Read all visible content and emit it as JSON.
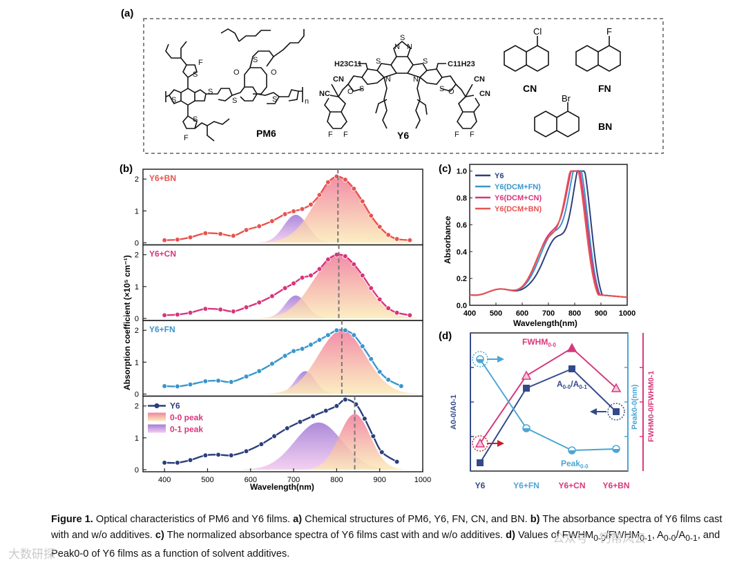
{
  "panel_labels": {
    "a": "(a)",
    "b": "(b)",
    "c": "(c)",
    "d": "(d)"
  },
  "panel_a": {
    "molecules": [
      {
        "name": "PM6",
        "atoms": [
          "F",
          "F",
          "S",
          "S",
          "S",
          "S",
          "S",
          "S",
          "S",
          "O",
          "O"
        ],
        "subscript": "n"
      },
      {
        "name": "Y6",
        "atoms": [
          "N",
          "N",
          "S",
          "S",
          "S",
          "S",
          "S",
          "N",
          "N",
          "O",
          "O",
          "F",
          "F",
          "F",
          "F",
          "CN",
          "CN",
          "CN",
          "NC"
        ],
        "side_chains": [
          "H23C11",
          "C11H23"
        ]
      },
      {
        "name": "CN",
        "halogen": "Cl"
      },
      {
        "name": "FN",
        "halogen": "F"
      },
      {
        "name": "BN",
        "halogen": "Br"
      }
    ]
  },
  "colors": {
    "bn": "#e8534f",
    "cn": "#d9347c",
    "fn": "#3a95cc",
    "y6": "#2c3f7c",
    "peak00": "#f08aa6",
    "peak01": "#b48ad8",
    "fwhm": "#d8387c",
    "a_ratio": "#334a8a",
    "peak_pos": "#4aa6d6"
  },
  "chart_data": [
    {
      "type": "line",
      "panel": "b",
      "title": "",
      "xlabel": "Wavelength(nm)",
      "ylabel": "Absorption coefficient (×10⁵ cm⁻¹)",
      "xlim": [
        350,
        1000
      ],
      "ylim": [
        0,
        2.2
      ],
      "xticks": [
        400,
        500,
        600,
        700,
        800,
        900,
        1000
      ],
      "yticks": [
        0,
        1,
        2
      ],
      "series": [
        {
          "name": "Y6+BN",
          "peak_line": 803,
          "x": [
            400,
            430,
            460,
            495,
            530,
            560,
            590,
            620,
            650,
            680,
            700,
            720,
            740,
            760,
            780,
            800,
            820,
            840,
            860,
            880,
            900,
            920,
            940,
            970
          ],
          "y": [
            0.08,
            0.1,
            0.17,
            0.3,
            0.28,
            0.22,
            0.4,
            0.52,
            0.68,
            0.9,
            0.99,
            1.06,
            1.2,
            1.5,
            1.9,
            2.08,
            1.98,
            1.7,
            1.3,
            0.85,
            0.5,
            0.25,
            0.12,
            0.08
          ],
          "peak00": {
            "center": 805,
            "height": 2.08,
            "width": 55
          },
          "peak01": {
            "center": 705,
            "height": 0.88,
            "width": 28
          }
        },
        {
          "name": "Y6+CN",
          "peak_line": 805,
          "x": [
            400,
            430,
            460,
            495,
            530,
            560,
            590,
            620,
            650,
            680,
            700,
            720,
            740,
            760,
            780,
            800,
            820,
            840,
            860,
            880,
            900,
            920,
            940,
            970
          ],
          "y": [
            0.1,
            0.12,
            0.18,
            0.3,
            0.28,
            0.22,
            0.35,
            0.5,
            0.7,
            0.95,
            1.1,
            1.28,
            1.35,
            1.55,
            1.85,
            2.0,
            1.95,
            1.7,
            1.35,
            0.95,
            0.6,
            0.32,
            0.18,
            0.1
          ],
          "peak00": {
            "center": 805,
            "height": 2.0,
            "width": 58
          },
          "peak01": {
            "center": 705,
            "height": 0.72,
            "width": 25
          }
        },
        {
          "name": "Y6+FN",
          "peak_line": 812,
          "x": [
            400,
            430,
            460,
            495,
            525,
            555,
            590,
            620,
            650,
            680,
            700,
            720,
            740,
            760,
            780,
            800,
            820,
            840,
            860,
            880,
            900,
            920,
            950
          ],
          "y": [
            0.25,
            0.24,
            0.3,
            0.4,
            0.42,
            0.38,
            0.55,
            0.72,
            0.95,
            1.2,
            1.35,
            1.42,
            1.55,
            1.7,
            1.85,
            2.0,
            2.0,
            1.85,
            1.5,
            1.1,
            0.7,
            0.45,
            0.25
          ],
          "peak00": {
            "center": 812,
            "height": 2.0,
            "width": 55
          },
          "peak01": {
            "center": 727,
            "height": 0.72,
            "width": 23
          }
        },
        {
          "name": "Y6",
          "peak_line": 842,
          "x": [
            400,
            430,
            460,
            495,
            525,
            555,
            590,
            625,
            655,
            685,
            715,
            745,
            775,
            800,
            820,
            845,
            865,
            885,
            905,
            940
          ],
          "y": [
            0.22,
            0.22,
            0.3,
            0.45,
            0.47,
            0.45,
            0.58,
            0.8,
            1.05,
            1.3,
            1.5,
            1.68,
            1.85,
            2.0,
            2.2,
            2.05,
            1.6,
            1.05,
            0.55,
            0.25
          ],
          "peak00": {
            "center": 842,
            "height": 1.75,
            "width": 36
          },
          "peak01": {
            "center": 758,
            "height": 1.48,
            "width": 55
          }
        }
      ],
      "legend": [
        "Y6",
        "0-0 peak",
        "0-1 peak"
      ]
    },
    {
      "type": "line",
      "panel": "c",
      "xlabel": "Wavelength(nm)",
      "ylabel": "Absorbance",
      "xlim": [
        400,
        1000
      ],
      "ylim": [
        0,
        1.05
      ],
      "xticks": [
        400,
        500,
        600,
        700,
        800,
        900,
        1000
      ],
      "yticks": [
        "0.0",
        "0.2",
        "0.4",
        "0.6",
        "0.8",
        "1.0"
      ],
      "legend_position": "top-left",
      "series": [
        {
          "name": "Y6",
          "peak": 828,
          "width": 34,
          "shoulder": 1.0
        },
        {
          "name": "Y6(DCM+FN)",
          "peak": 815,
          "width": 36,
          "shoulder": 1.03
        },
        {
          "name": "Y6(DCM+CN)",
          "peak": 808,
          "width": 38,
          "shoulder": 1.0
        },
        {
          "name": "Y6(DCM+BN)",
          "peak": 803,
          "width": 38,
          "shoulder": 0.93
        }
      ]
    },
    {
      "type": "line",
      "panel": "d",
      "categories": [
        "Y6",
        "Y6+FN",
        "Y6+CN",
        "Y6+BN"
      ],
      "left_axis_label": "A0-0/A0-1",
      "right_axis_label_1": "Peak0-0(nm)",
      "right_axis_label_2": "FWHM0-0/FWHM0-1",
      "series": [
        {
          "name": "FWHM0-0",
          "values": [
            0.2,
            0.69,
            0.89,
            0.6
          ]
        },
        {
          "name": "A0-0/A0-1",
          "values": [
            0.06,
            0.6,
            0.74,
            0.43
          ]
        },
        {
          "name": "Peak0-0",
          "values": [
            0.81,
            0.31,
            0.15,
            0.16
          ]
        }
      ],
      "annotations": [
        "FWHM",
        "0-0",
        "A",
        "0-0",
        "/A",
        "0-1",
        "Peak",
        "0-0"
      ]
    }
  ],
  "caption": {
    "label": "Figure 1.",
    "part1": " Optical characteristics of PM6 and Y6 films. ",
    "a": "a)",
    "part2": " Chemical structures of PM6, Y6, FN, CN, and BN. ",
    "b": "b)",
    "part3": " The absorbance spectra of Y6 films cast with and w/o additives. ",
    "c": "c)",
    "part4": " The normalized absorbance spectra of Y6 films cast with and w/o additives. ",
    "d": "d)",
    "part5": " Values of FWHM",
    "sub1": "0-0",
    "part6": "/FWHM",
    "sub2": "0-1",
    "part7": ", A",
    "sub3": "0-0",
    "part8": "/A",
    "sub4": "0-1",
    "part9": ", and Peak0-0 of Y6 films as a function of solvent additives."
  },
  "watermarks": {
    "left": "大数研探",
    "right": "公众号 · 钙帮风云"
  }
}
